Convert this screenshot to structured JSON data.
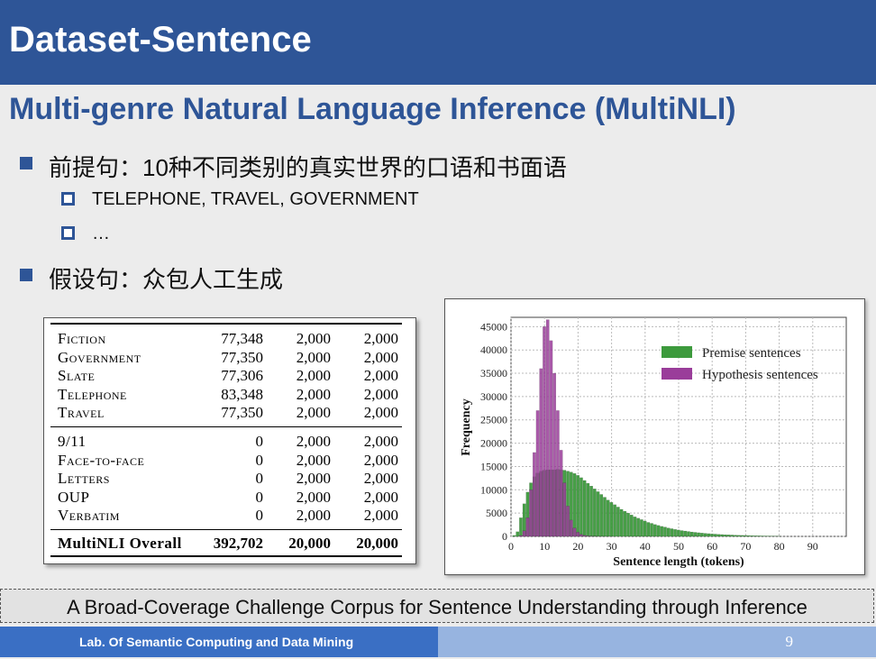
{
  "slide": {
    "title": "Dataset-Sentence",
    "subtitle": "Multi-genre Natural Language Inference (MultiNLI)",
    "bullets": [
      {
        "text": "前提句：10种不同类别的真实世界的口语和书面语",
        "sub": [
          "TELEPHONE, TRAVEL, GOVERNMENT",
          "…"
        ]
      },
      {
        "text": "假设句：众包人工生成",
        "sub": []
      }
    ],
    "reference": "A Broad-Coverage Challenge Corpus for Sentence Understanding through Inference",
    "footer_lab": "Lab. Of Semantic Computing and Data Mining",
    "page_number": "9",
    "colors": {
      "title_bar": "#2e5597",
      "footer_left": "#3a6fc4",
      "footer_right": "#97b4e0"
    }
  },
  "table": {
    "rows": [
      [
        "Fiction",
        "77,348",
        "2,000",
        "2,000"
      ],
      [
        "Government",
        "77,350",
        "2,000",
        "2,000"
      ],
      [
        "Slate",
        "77,306",
        "2,000",
        "2,000"
      ],
      [
        "Telephone",
        "83,348",
        "2,000",
        "2,000"
      ],
      [
        "Travel",
        "77,350",
        "2,000",
        "2,000"
      ],
      [
        "9/11",
        "0",
        "2,000",
        "2,000"
      ],
      [
        "Face-to-face",
        "0",
        "2,000",
        "2,000"
      ],
      [
        "Letters",
        "0",
        "2,000",
        "2,000"
      ],
      [
        "OUP",
        "0",
        "2,000",
        "2,000"
      ],
      [
        "Verbatim",
        "0",
        "2,000",
        "2,000"
      ],
      [
        "MultiNLI Overall",
        "392,702",
        "20,000",
        "20,000"
      ]
    ]
  },
  "chart_data": {
    "type": "bar",
    "xlabel": "Sentence length (tokens)",
    "ylabel": "Frequency",
    "xlim": [
      0,
      100
    ],
    "ylim": [
      0,
      47000
    ],
    "xticks": [
      0,
      10,
      20,
      30,
      40,
      50,
      60,
      70,
      80,
      90
    ],
    "yticks": [
      0,
      5000,
      10000,
      15000,
      20000,
      25000,
      30000,
      35000,
      40000,
      45000
    ],
    "grid": true,
    "legend_position": "top-right",
    "x": [
      1,
      2,
      3,
      4,
      5,
      6,
      7,
      8,
      9,
      10,
      11,
      12,
      13,
      14,
      15,
      16,
      17,
      18,
      19,
      20,
      21,
      22,
      23,
      24,
      25,
      26,
      27,
      28,
      29,
      30,
      31,
      32,
      33,
      34,
      35,
      36,
      37,
      38,
      39,
      40,
      41,
      42,
      43,
      44,
      45,
      46,
      47,
      48,
      49,
      50,
      51,
      52,
      53,
      54,
      55,
      56,
      57,
      58,
      59,
      60,
      61,
      62,
      63,
      64,
      65,
      66,
      67,
      68,
      69,
      70,
      71,
      72,
      73,
      74,
      75,
      76,
      77,
      78,
      79,
      80
    ],
    "series": [
      {
        "name": "Premise sentences",
        "color": "#3d9a3d",
        "values": [
          200,
          1000,
          4000,
          7000,
          9500,
          11500,
          12800,
          13600,
          14000,
          14200,
          14300,
          14300,
          14300,
          14400,
          14300,
          14200,
          14000,
          13800,
          13500,
          13100,
          12600,
          12000,
          11400,
          10800,
          10200,
          9600,
          9000,
          8400,
          7800,
          7300,
          6800,
          6300,
          5800,
          5400,
          5000,
          4600,
          4200,
          3900,
          3600,
          3300,
          3000,
          2800,
          2550,
          2350,
          2150,
          2000,
          1800,
          1650,
          1500,
          1380,
          1250,
          1150,
          1050,
          950,
          870,
          790,
          720,
          650,
          590,
          540,
          490,
          440,
          400,
          360,
          330,
          300,
          270,
          240,
          220,
          200,
          180,
          160,
          140,
          130,
          110,
          100,
          90,
          80,
          70,
          60
        ]
      },
      {
        "name": "Hypothesis sentences",
        "color": "#9a3d9a",
        "values": [
          0,
          0,
          200,
          1200,
          4000,
          10000,
          18000,
          27000,
          36000,
          45000,
          46500,
          42000,
          35000,
          27000,
          18500,
          11500,
          6500,
          3500,
          1800,
          900,
          450,
          220,
          110,
          60,
          30,
          15,
          8,
          4,
          2,
          1,
          0,
          0,
          0,
          0,
          0,
          0,
          0,
          0,
          0,
          0,
          0,
          0,
          0,
          0,
          0,
          0,
          0,
          0,
          0,
          0,
          0,
          0,
          0,
          0,
          0,
          0,
          0,
          0,
          0,
          0,
          0,
          0,
          0,
          0,
          0,
          0,
          0,
          0,
          0,
          0,
          0,
          0,
          0,
          0,
          0,
          0,
          0,
          0,
          0,
          0
        ]
      }
    ]
  }
}
